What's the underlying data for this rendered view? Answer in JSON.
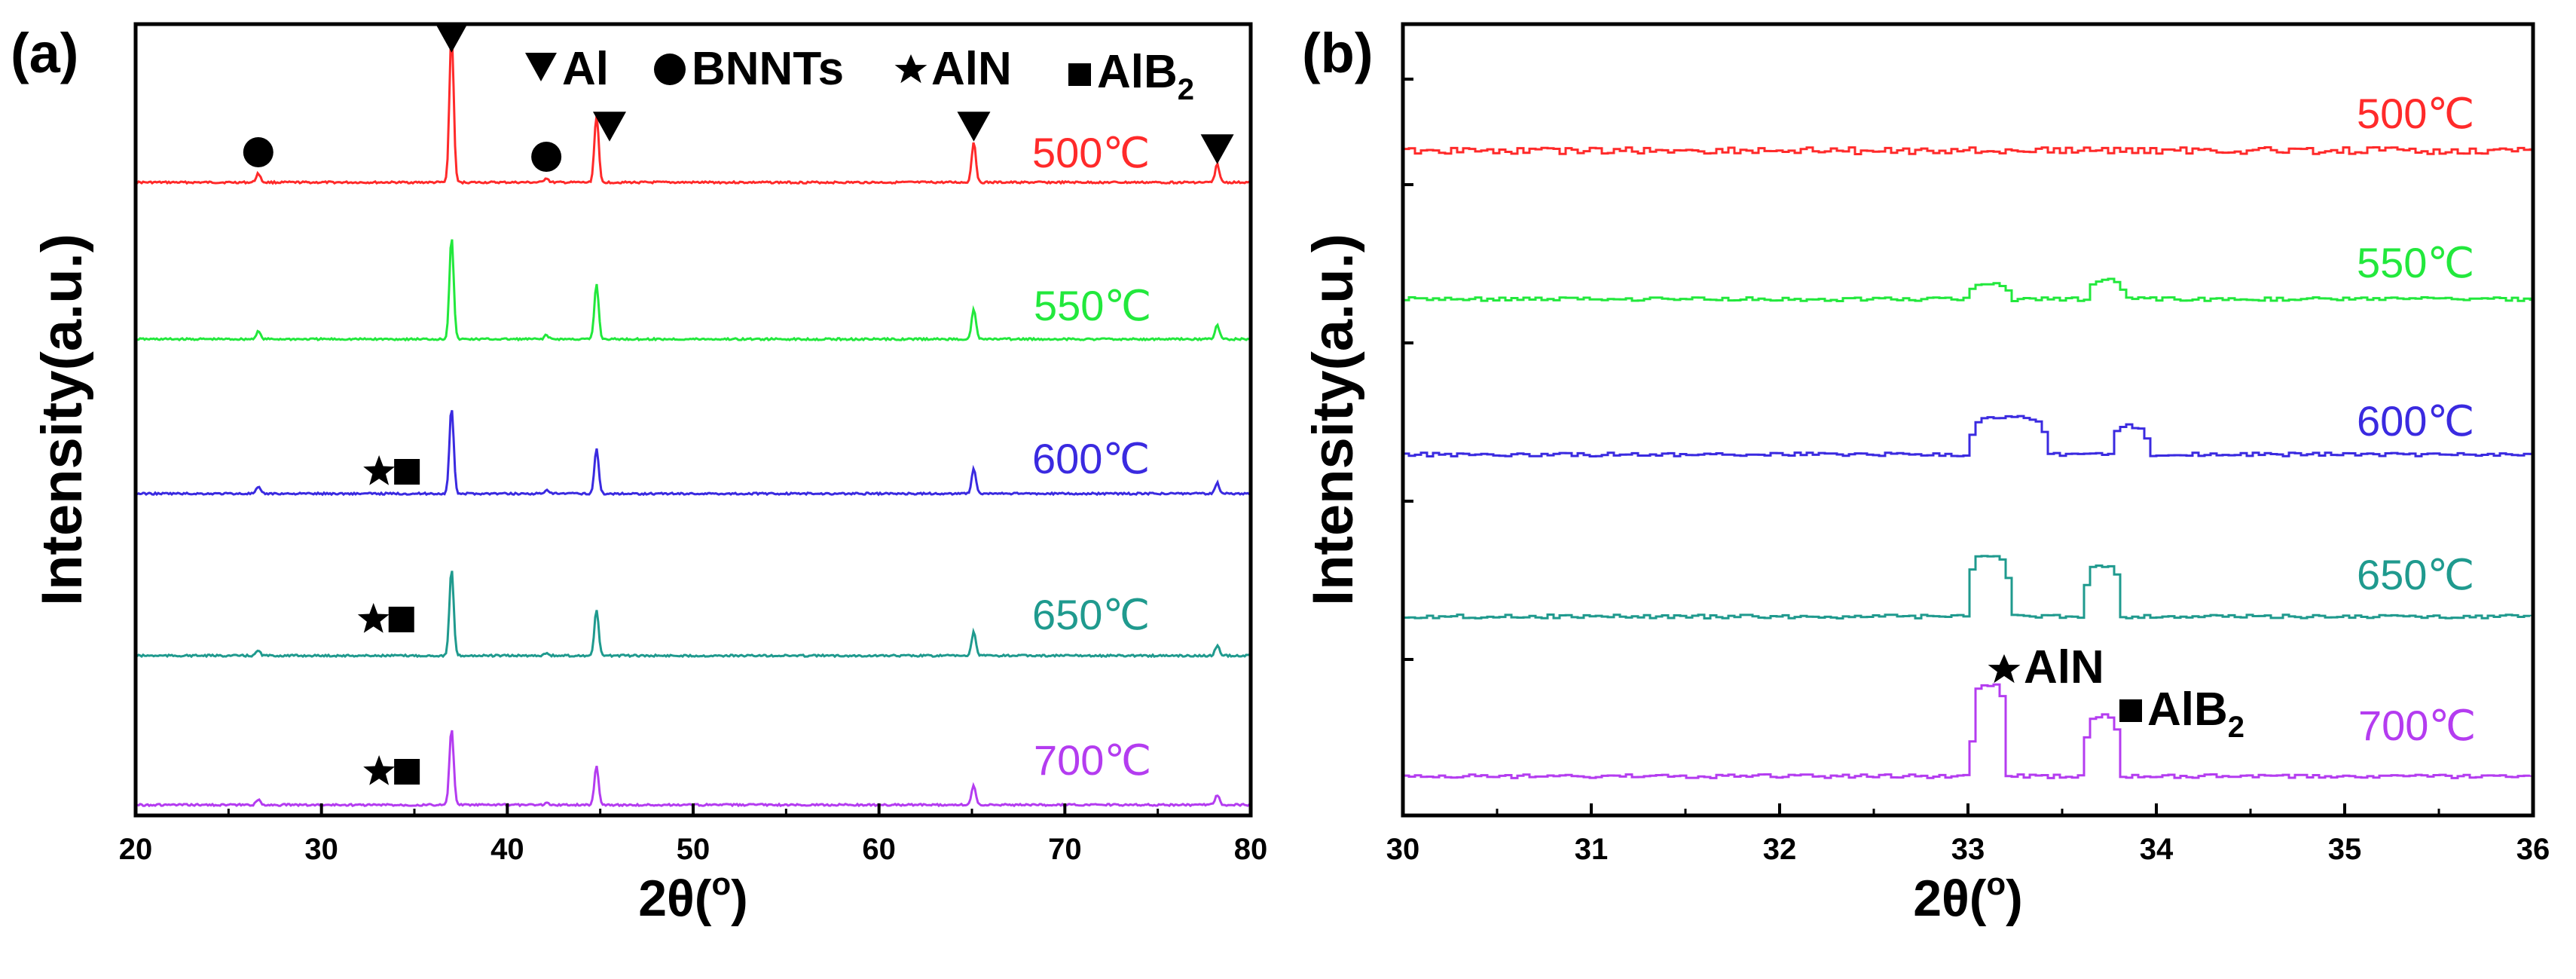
{
  "chart_data": [
    {
      "panel_label": "(a)",
      "type": "line",
      "xlabel": "2θ(°)",
      "xlabel_parts": {
        "theta": "2θ(",
        "degree": "o",
        "close": ")"
      },
      "ylabel": "Intensity(a.u.)",
      "xlim": [
        20,
        80
      ],
      "xticks": [
        "20",
        "30",
        "40",
        "50",
        "60",
        "70",
        "80"
      ],
      "legend": {
        "placement": "top",
        "entries": [
          {
            "marker": "triangle-down",
            "label": "Al"
          },
          {
            "marker": "circle",
            "label": "BNNTs"
          },
          {
            "marker": "star",
            "label": "AlN"
          },
          {
            "marker": "square",
            "label": "AlB",
            "subscript": "2"
          }
        ]
      },
      "series": [
        {
          "name": "500℃",
          "color": "#ff2a2a",
          "peaks": [
            {
              "x": 26.6,
              "h": 0.06
            },
            {
              "x": 37.0,
              "h": 1.0
            },
            {
              "x": 42.1,
              "h": 0.03
            },
            {
              "x": 44.8,
              "h": 0.45
            },
            {
              "x": 65.1,
              "h": 0.27
            },
            {
              "x": 78.2,
              "h": 0.12
            }
          ],
          "markers": [
            {
              "symbol": "circle",
              "x": 26.6
            },
            {
              "symbol": "triangle",
              "x": 37.0
            },
            {
              "symbol": "circle",
              "x": 42.1
            },
            {
              "symbol": "triangle",
              "x": 45.5
            },
            {
              "symbol": "triangle",
              "x": 65.1
            },
            {
              "symbol": "triangle",
              "x": 78.2
            }
          ]
        },
        {
          "name": "550℃",
          "color": "#22e83c",
          "peaks": [
            {
              "x": 26.6,
              "h": 0.06
            },
            {
              "x": 37.0,
              "h": 0.78
            },
            {
              "x": 42.1,
              "h": 0.03
            },
            {
              "x": 44.8,
              "h": 0.42
            },
            {
              "x": 65.1,
              "h": 0.23
            },
            {
              "x": 78.2,
              "h": 0.11
            }
          ],
          "markers": []
        },
        {
          "name": "600℃",
          "color": "#3a2ae0",
          "peaks": [
            {
              "x": 26.6,
              "h": 0.06
            },
            {
              "x": 37.0,
              "h": 0.82
            },
            {
              "x": 42.1,
              "h": 0.03
            },
            {
              "x": 44.8,
              "h": 0.43
            },
            {
              "x": 65.1,
              "h": 0.24
            },
            {
              "x": 78.2,
              "h": 0.1
            }
          ],
          "markers": [
            {
              "symbol": "star",
              "x": 33.1
            },
            {
              "symbol": "square",
              "x": 34.6
            }
          ]
        },
        {
          "name": "650℃",
          "color": "#1f9a8e",
          "peaks": [
            {
              "x": 26.6,
              "h": 0.05
            },
            {
              "x": 37.0,
              "h": 0.85
            },
            {
              "x": 42.1,
              "h": 0.03
            },
            {
              "x": 44.8,
              "h": 0.45
            },
            {
              "x": 65.1,
              "h": 0.24
            },
            {
              "x": 78.2,
              "h": 0.1
            }
          ],
          "markers": [
            {
              "symbol": "star",
              "x": 32.8
            },
            {
              "symbol": "square",
              "x": 34.3
            }
          ]
        },
        {
          "name": "700℃",
          "color": "#b43cf0",
          "peaks": [
            {
              "x": 26.6,
              "h": 0.05
            },
            {
              "x": 37.0,
              "h": 0.78
            },
            {
              "x": 42.1,
              "h": 0.02
            },
            {
              "x": 44.8,
              "h": 0.4
            },
            {
              "x": 65.1,
              "h": 0.2
            },
            {
              "x": 78.2,
              "h": 0.1
            }
          ],
          "markers": [
            {
              "symbol": "star",
              "x": 33.1
            },
            {
              "symbol": "square",
              "x": 34.6
            }
          ]
        }
      ]
    },
    {
      "panel_label": "(b)",
      "type": "line",
      "xlabel": "2θ(°)",
      "xlabel_parts": {
        "theta": "2θ(",
        "degree": "o",
        "close": ")"
      },
      "ylabel": "Intensity(a.u.)",
      "xlim": [
        30,
        36
      ],
      "xticks": [
        "30",
        "31",
        "32",
        "33",
        "34",
        "35",
        "36"
      ],
      "annotations": [
        {
          "symbol": "star",
          "label": "AlN",
          "x": 33.15,
          "series": "700℃"
        },
        {
          "symbol": "square",
          "label": "AlB",
          "subscript": "2",
          "x": 33.8,
          "series": "700℃"
        }
      ],
      "series": [
        {
          "name": "500℃",
          "color": "#ff2a2a",
          "bumps": []
        },
        {
          "name": "550℃",
          "color": "#22e83c",
          "bumps": [
            {
              "x": 33.1,
              "w": 0.12,
              "h": 0.08
            },
            {
              "x": 33.72,
              "w": 0.1,
              "h": 0.1
            }
          ]
        },
        {
          "name": "600℃",
          "color": "#3a2ae0",
          "bumps": [
            {
              "x": 33.2,
              "w": 0.22,
              "h": 0.2
            },
            {
              "x": 33.85,
              "w": 0.1,
              "h": 0.15
            }
          ]
        },
        {
          "name": "650℃",
          "color": "#1f9a8e",
          "bumps": [
            {
              "x": 33.1,
              "w": 0.12,
              "h": 0.32
            },
            {
              "x": 33.7,
              "w": 0.1,
              "h": 0.27
            }
          ]
        },
        {
          "name": "700℃",
          "color": "#b43cf0",
          "bumps": [
            {
              "x": 33.1,
              "w": 0.1,
              "h": 0.48
            },
            {
              "x": 33.7,
              "w": 0.1,
              "h": 0.32
            }
          ]
        }
      ]
    }
  ]
}
